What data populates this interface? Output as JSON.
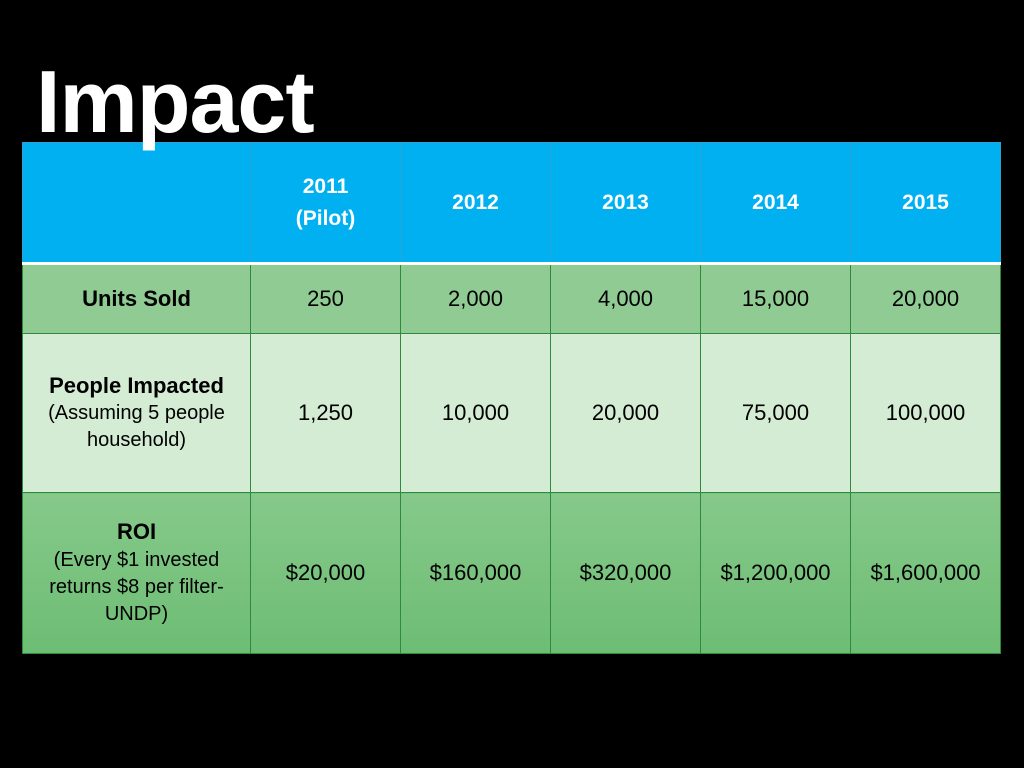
{
  "title": "Impact",
  "table": {
    "header": {
      "corner": "",
      "years": [
        {
          "line1": "2011",
          "line2": "(Pilot)"
        },
        {
          "line1": "2012",
          "line2": ""
        },
        {
          "line1": "2013",
          "line2": ""
        },
        {
          "line1": "2014",
          "line2": ""
        },
        {
          "line1": "2015",
          "line2": ""
        }
      ]
    },
    "rows": [
      {
        "label": "Units Sold",
        "sublabel": "",
        "values": [
          "250",
          "2,000",
          "4,000",
          "15,000",
          "20,000"
        ]
      },
      {
        "label": "People Impacted",
        "sublabel": "(Assuming 5 people household)",
        "values": [
          "1,250",
          "10,000",
          "20,000",
          "75,000",
          "100,000"
        ]
      },
      {
        "label": "ROI",
        "sublabel": "(Every $1 invested returns $8 per filter-UNDP)",
        "values": [
          "$20,000",
          "$160,000",
          "$320,000",
          "$1,200,000",
          "$1,600,000"
        ]
      }
    ]
  },
  "colors": {
    "background": "#000000",
    "header": "#00b0f0",
    "row_dark": "#8fcb93",
    "row_light": "#d4ecd3",
    "border": "#2e8b3e"
  }
}
